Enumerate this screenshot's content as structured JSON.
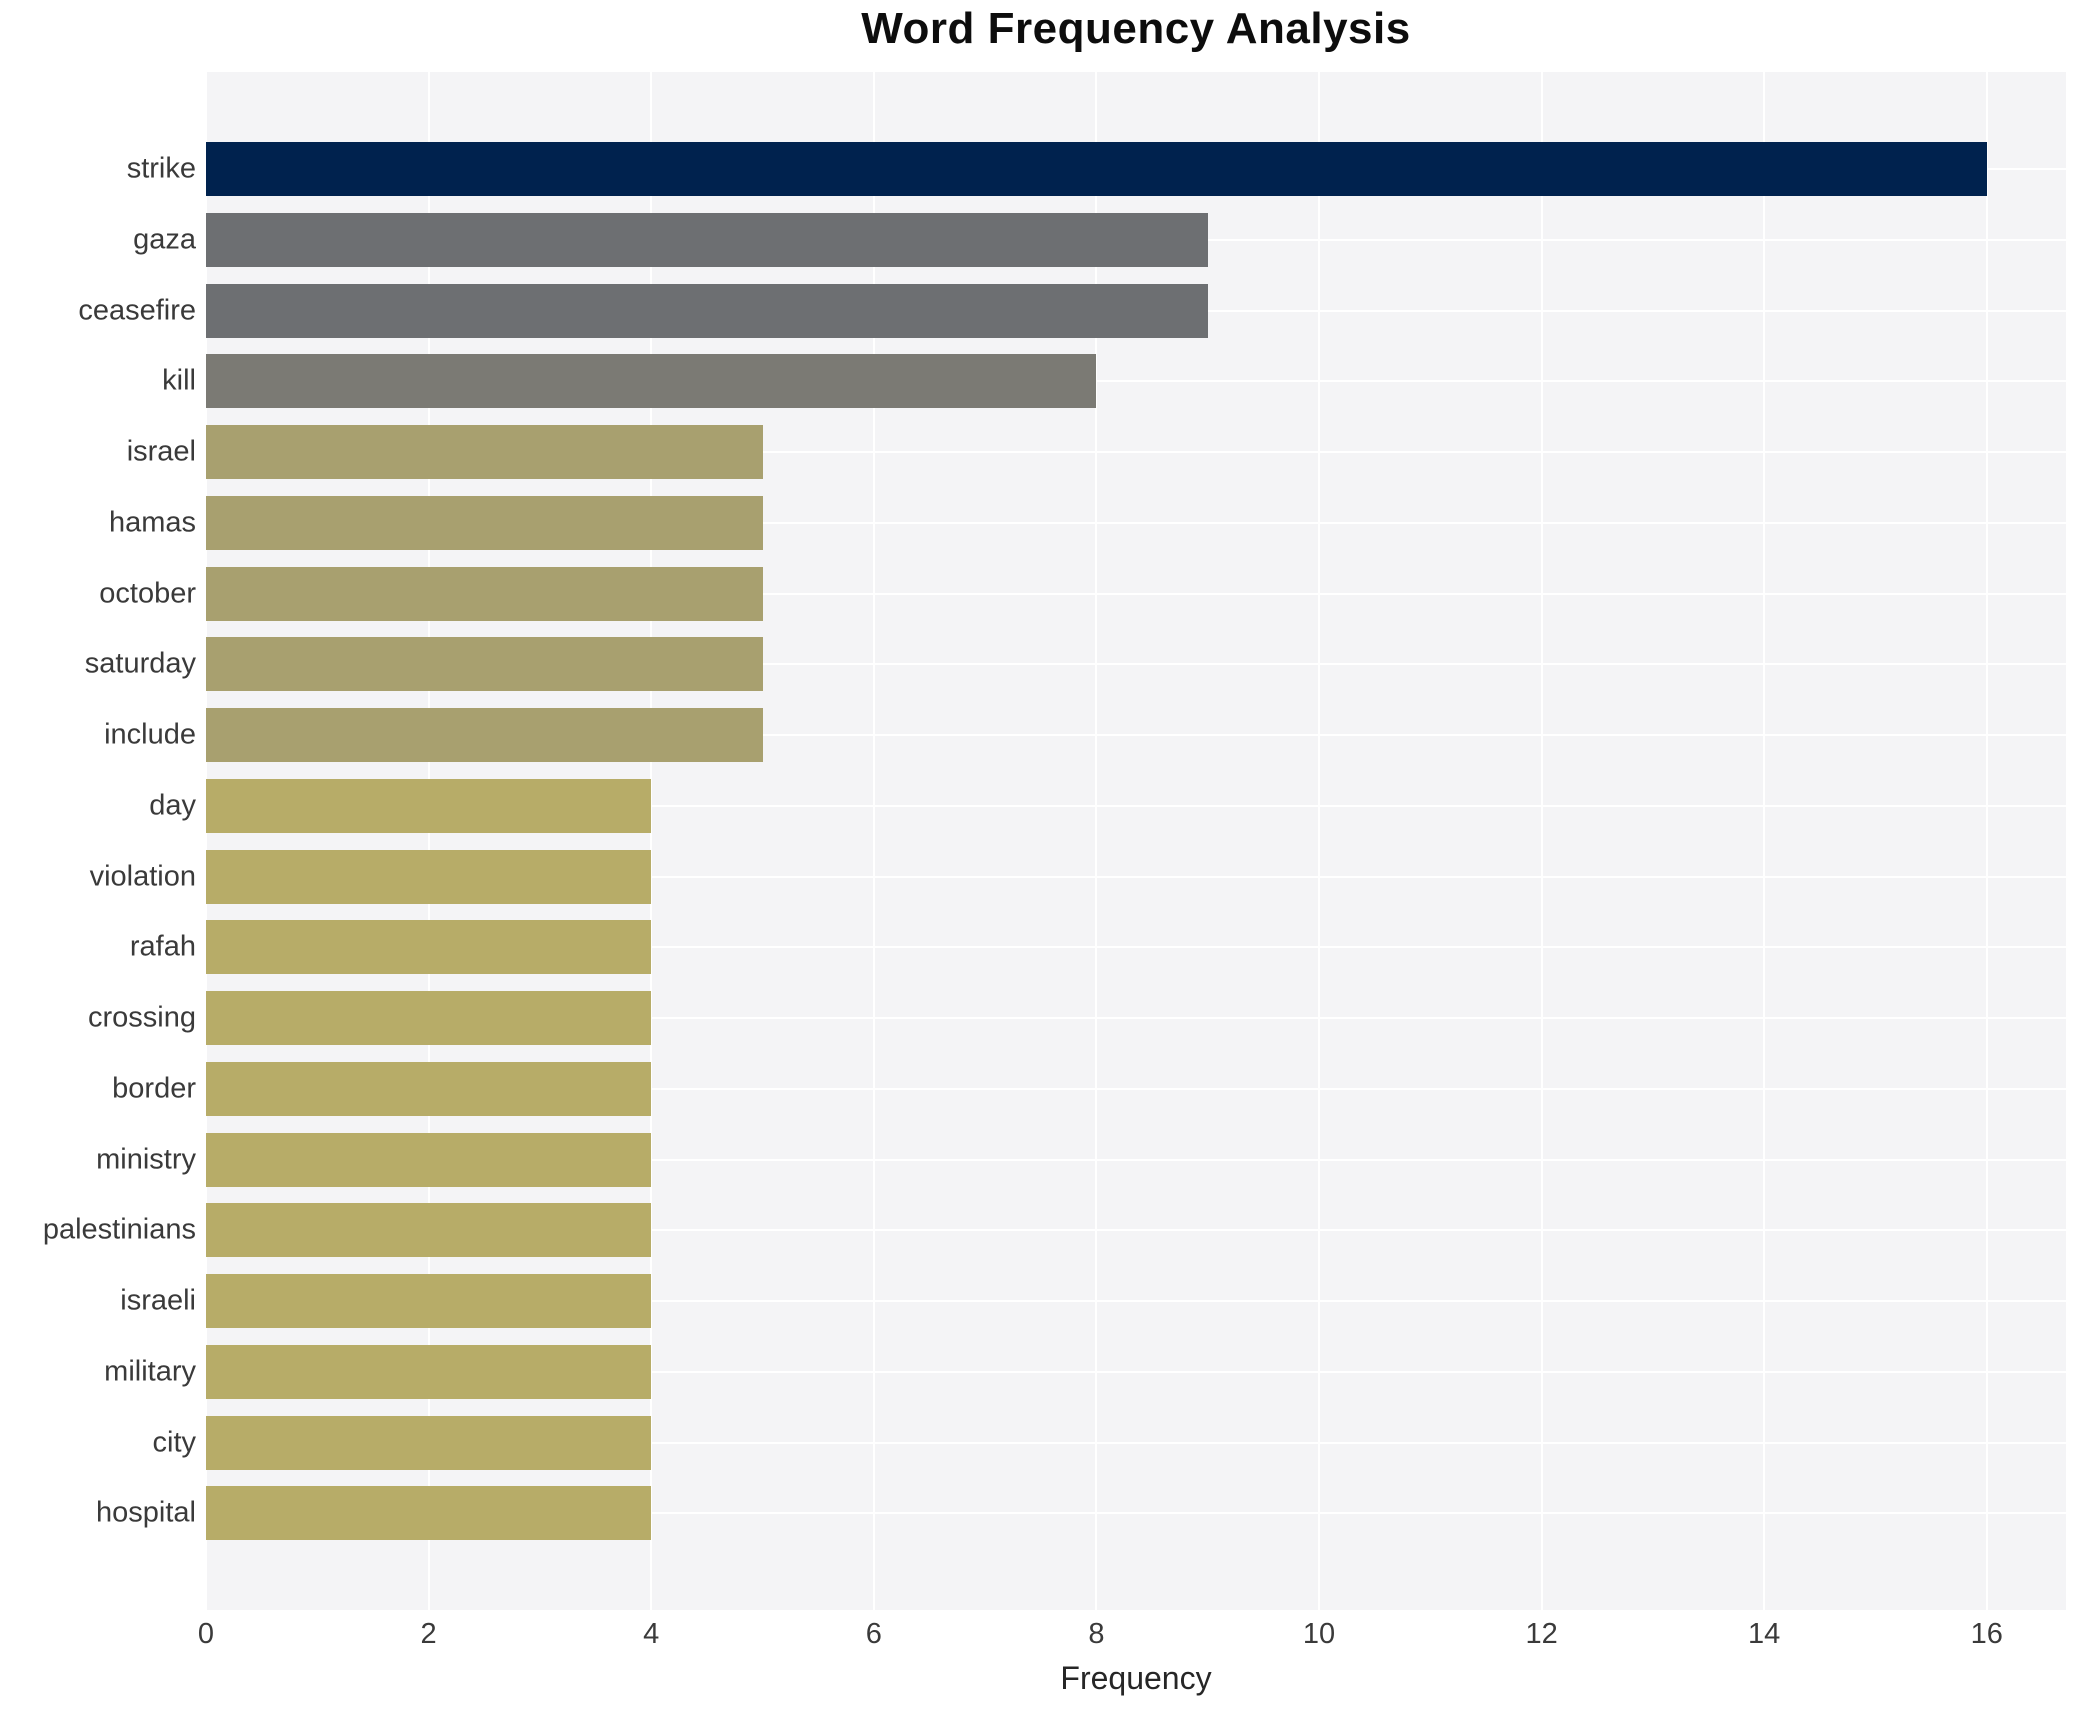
{
  "chart_data": {
    "type": "bar",
    "orientation": "horizontal",
    "title": "Word Frequency Analysis",
    "xlabel": "Frequency",
    "ylabel": "",
    "categories": [
      "strike",
      "gaza",
      "ceasefire",
      "kill",
      "israel",
      "hamas",
      "october",
      "saturday",
      "include",
      "day",
      "violation",
      "rafah",
      "crossing",
      "border",
      "ministry",
      "palestinians",
      "israeli",
      "military",
      "city",
      "hospital"
    ],
    "values": [
      16,
      9,
      9,
      8,
      5,
      5,
      5,
      5,
      5,
      4,
      4,
      4,
      4,
      4,
      4,
      4,
      4,
      4,
      4,
      4
    ],
    "bar_colors": [
      "#00224e",
      "#6d6f72",
      "#6d6f72",
      "#7b7a74",
      "#a8a06f",
      "#a8a06f",
      "#a8a06f",
      "#a8a06f",
      "#a8a06f",
      "#b7ac68",
      "#b7ac68",
      "#b7ac68",
      "#b7ac68",
      "#b7ac68",
      "#b7ac68",
      "#b7ac68",
      "#b7ac68",
      "#b7ac68",
      "#b7ac68",
      "#b7ac68"
    ],
    "x_ticks": [
      0,
      2,
      4,
      6,
      8,
      10,
      12,
      14,
      16
    ],
    "xlim": [
      0,
      16.7
    ],
    "grid": true,
    "legend": false,
    "plot_bg_color": "#f4f4f6",
    "grid_color": "#ffffff",
    "figure_bg_color": "#ffffff"
  }
}
